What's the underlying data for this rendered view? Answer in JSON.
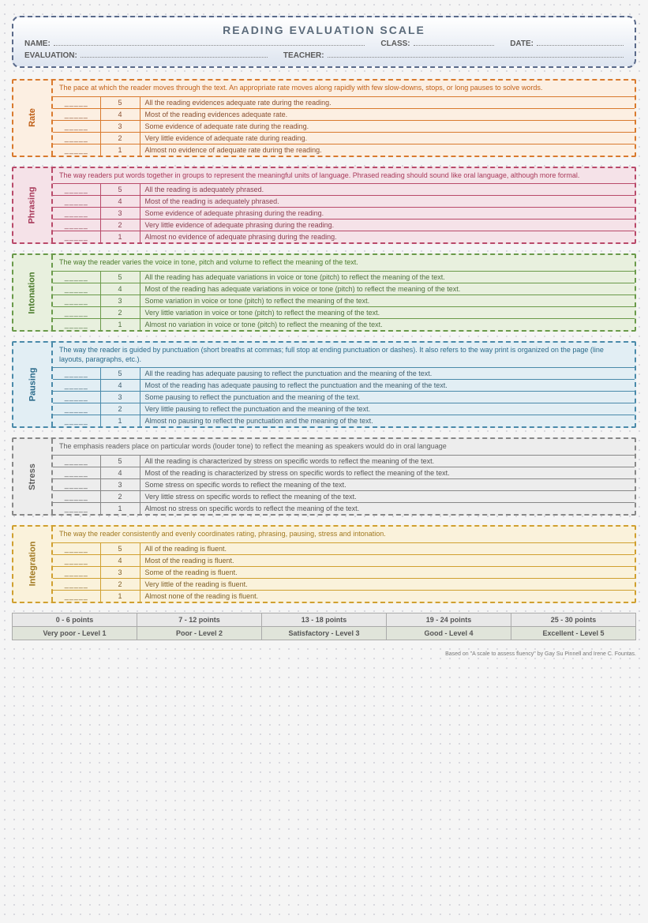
{
  "header": {
    "title": "READING EVALUATION SCALE",
    "fields": {
      "name": "NAME:",
      "class": "CLASS:",
      "date": "DATE:",
      "evaluation": "EVALUATION:",
      "teacher": "TEACHER:"
    }
  },
  "categories": [
    {
      "key": "rate",
      "label": "Rate",
      "theme_color": "#d97a2e",
      "bg_color": "#fcefe2",
      "description": "The pace at which the reader moves through the text. An appropriate rate moves along rapidly with few slow-downs, stops, or long pauses to solve words.",
      "rows": [
        {
          "score": 5,
          "text": "All the reading evidences adequate rate during the reading."
        },
        {
          "score": 4,
          "text": "Most of the reading evidences adequate rate."
        },
        {
          "score": 3,
          "text": "Some evidence of adequate rate during the reading."
        },
        {
          "score": 2,
          "text": "Very little evidence of adequate rate during reading."
        },
        {
          "score": 1,
          "text": "Almost no evidence of adequate rate during the reading."
        }
      ]
    },
    {
      "key": "phrasing",
      "label": "Phrasing",
      "theme_color": "#b94a6a",
      "bg_color": "#f5e2e8",
      "description": "The way readers put words together in groups to represent the meaningful units of language. Phrased reading should sound like oral language, although more formal.",
      "rows": [
        {
          "score": 5,
          "text": "All the reading is adequately phrased."
        },
        {
          "score": 4,
          "text": "Most of the reading is adequately phrased."
        },
        {
          "score": 3,
          "text": "Some evidence of adequate phrasing during the reading."
        },
        {
          "score": 2,
          "text": "Very little evidence of adequate phrasing during the reading."
        },
        {
          "score": 1,
          "text": "Almost no evidence of adequate phrasing during the reading."
        }
      ]
    },
    {
      "key": "intonation",
      "label": "Intonation",
      "theme_color": "#6a9a4a",
      "bg_color": "#e8f0de",
      "description": "The way the reader varies the voice in tone, pitch and volume to reflect the meaning of the text.",
      "rows": [
        {
          "score": 5,
          "text": "All the reading has adequate variations in voice or tone (pitch) to reflect the meaning of the text."
        },
        {
          "score": 4,
          "text": "Most of the reading has adequate variations in voice or tone (pitch) to reflect the meaning of the text."
        },
        {
          "score": 3,
          "text": "Some variation in voice or tone (pitch) to reflect the meaning of the text."
        },
        {
          "score": 2,
          "text": "Very little variation in voice or tone (pitch) to reflect the meaning of the text."
        },
        {
          "score": 1,
          "text": "Almost no variation in voice or tone (pitch) to reflect the meaning of the text."
        }
      ]
    },
    {
      "key": "pausing",
      "label": "Pausing",
      "theme_color": "#4a8aaa",
      "bg_color": "#e2eef4",
      "description": "The way the reader is guided by punctuation (short breaths at commas; full stop at ending punctuation or dashes). It also refers to the way print is organized on the page (line layouts, paragraphs, etc.).",
      "rows": [
        {
          "score": 5,
          "text": "All the reading has adequate pausing to reflect the punctuation and the meaning of the text."
        },
        {
          "score": 4,
          "text": "Most of the reading has adequate pausing to reflect the punctuation and the meaning of the text."
        },
        {
          "score": 3,
          "text": "Some pausing to reflect the punctuation and the meaning of the text."
        },
        {
          "score": 2,
          "text": "Very little pausing to reflect the punctuation and the meaning of the text."
        },
        {
          "score": 1,
          "text": "Almost no pausing to reflect the punctuation and the meaning of the text."
        }
      ]
    },
    {
      "key": "stress",
      "label": "Stress",
      "theme_color": "#888888",
      "bg_color": "#ededed",
      "description": "The emphasis readers place on particular words (louder tone) to reflect the meaning as speakers would do in oral language",
      "rows": [
        {
          "score": 5,
          "text": "All the reading is characterized by stress on specific words to reflect the meaning of the text."
        },
        {
          "score": 4,
          "text": "Most of the reading is characterized by stress on specific words to reflect the meaning of the text."
        },
        {
          "score": 3,
          "text": "Some stress on specific words to reflect the meaning of the text."
        },
        {
          "score": 2,
          "text": "Very little stress on specific words to reflect the meaning of the text."
        },
        {
          "score": 1,
          "text": "Almost no stress on specific words to reflect the meaning of the text."
        }
      ]
    },
    {
      "key": "integration",
      "label": "Integration",
      "theme_color": "#d0a030",
      "bg_color": "#faf2db",
      "description": "The way the reader consistently and evenly coordinates rating, phrasing, pausing, stress and intonation.",
      "rows": [
        {
          "score": 5,
          "text": "All of the reading is fluent."
        },
        {
          "score": 4,
          "text": "Most of the reading is fluent."
        },
        {
          "score": 3,
          "text": "Some of the reading is fluent."
        },
        {
          "score": 2,
          "text": "Very little of the reading is fluent."
        },
        {
          "score": 1,
          "text": "Almost none of the reading is fluent."
        }
      ]
    }
  ],
  "legend": [
    {
      "range": "0 - 6 points",
      "label": "Very poor - Level 1"
    },
    {
      "range": "7 - 12 points",
      "label": "Poor - Level 2"
    },
    {
      "range": "13 - 18 points",
      "label": "Satisfactory - Level 3"
    },
    {
      "range": "19 - 24 points",
      "label": "Good - Level 4"
    },
    {
      "range": "25 - 30 points",
      "label": "Excellent - Level 5"
    }
  ],
  "footer": "Based on \"A scale to assess fluency\" by Gay Su Pinnell and Irene C. Fountas."
}
